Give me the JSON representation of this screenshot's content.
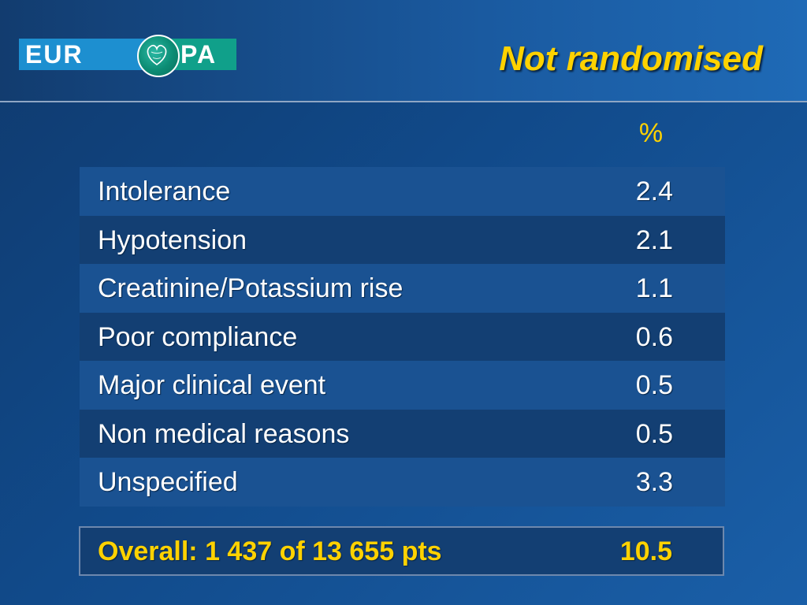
{
  "header": {
    "logo_left": "EUR",
    "logo_right": "PA",
    "title": "Not randomised"
  },
  "table": {
    "unit_header": "%",
    "rows": [
      {
        "label": "Intolerance",
        "value": "2.4"
      },
      {
        "label": "Hypotension",
        "value": "2.1"
      },
      {
        "label": "Creatinine/Potassium rise",
        "value": "1.1"
      },
      {
        "label": "Poor compliance",
        "value": "0.6"
      },
      {
        "label": "Major clinical event",
        "value": "0.5"
      },
      {
        "label": "Non medical reasons",
        "value": "0.5"
      },
      {
        "label": "Unspecified",
        "value": "3.3"
      }
    ],
    "overall": {
      "label": "Overall: 1 437 of 13 655 pts",
      "value": "10.5"
    }
  },
  "colors": {
    "title": "#ffd200",
    "background": "#114a8a",
    "row_light": "#1a5292",
    "row_dark": "#133f73",
    "logo_blue": "#1d8fd0",
    "logo_green": "#10a08a"
  }
}
